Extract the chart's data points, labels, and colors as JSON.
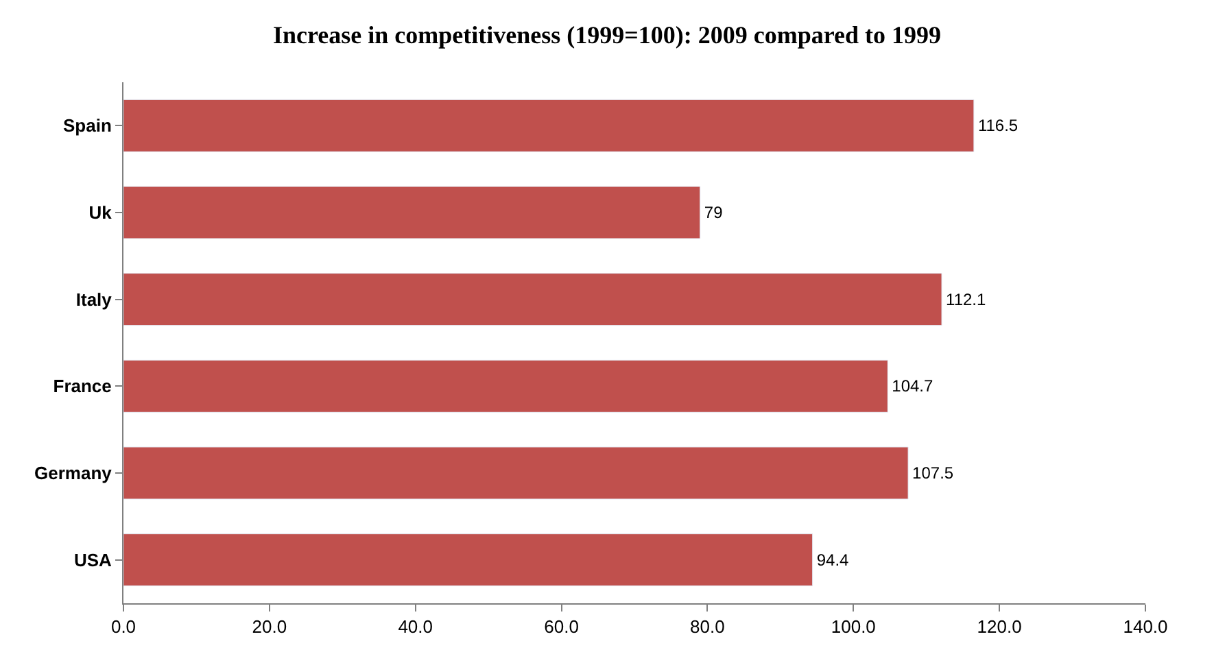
{
  "chart_data": {
    "type": "bar",
    "orientation": "horizontal",
    "title": "Increase in competitiveness (1999=100): 2009 compared to 1999",
    "categories": [
      "Spain",
      "Uk",
      "Italy",
      "France",
      "Germany",
      "USA"
    ],
    "values": [
      116.5,
      79,
      112.1,
      104.7,
      107.5,
      94.4
    ],
    "color": "#c0504d",
    "data_labels": true,
    "xlim": [
      0,
      140
    ],
    "xticks": [
      {
        "value": 0,
        "label": "0.0"
      },
      {
        "value": 20,
        "label": "20.0"
      },
      {
        "value": 40,
        "label": "40.0"
      },
      {
        "value": 60,
        "label": "60.0"
      },
      {
        "value": 80,
        "label": "80.0"
      },
      {
        "value": 100,
        "label": "100.0"
      },
      {
        "value": 120,
        "label": "120.0"
      },
      {
        "value": 140,
        "label": "140.0"
      }
    ]
  }
}
